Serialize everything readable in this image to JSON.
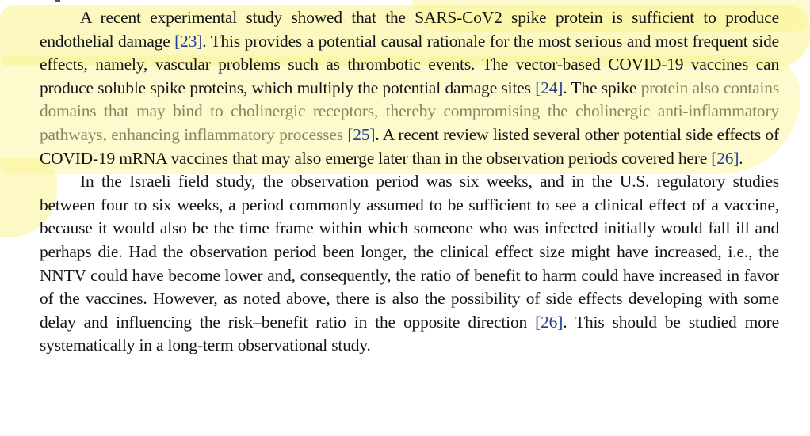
{
  "paragraphs": [
    {
      "segments": [
        {
          "t": "A recent experimental study showed that the SARS-CoV2 spike protein is sufficient to produce endothelial damage ",
          "c": ""
        },
        {
          "t": "[23]",
          "c": "ref"
        },
        {
          "t": ". This provides a potential causal rationale for the most serious and most frequent side effects, namely, vascular problems such as thrombotic events. The vector-based COVID-19 vaccines can produce soluble spike proteins, which multiply the potential damage sites ",
          "c": ""
        },
        {
          "t": "[24]",
          "c": "ref"
        },
        {
          "t": ". The spike ",
          "c": ""
        },
        {
          "t": "protein also contains domains that may bind to cholinergic receptors, thereby compromising the cholinergic anti-inflammatory pathways, enhancing inflammatory processes",
          "c": "fade"
        },
        {
          "t": " ",
          "c": ""
        },
        {
          "t": "[25]",
          "c": "ref"
        },
        {
          "t": ". A recent review listed several other potential side effects of COVID-19 mRNA vaccines that may also emerge later than in the observation periods covered here ",
          "c": ""
        },
        {
          "t": "[26]",
          "c": "ref"
        },
        {
          "t": ".",
          "c": ""
        }
      ]
    },
    {
      "segments": [
        {
          "t": "In the Israeli field study, the observation period was six weeks, and in the U.S. regulatory studies between four to six weeks, a period commonly assumed to be sufficient to see a clinical effect of a vaccine, because it would also be the time frame within which someone who was infected initially would fall ill and perhaps die. Had the observation period been longer, the clinical effect size might have increased, i.e., the NNTV could have become lower and, consequently, the ratio of benefit to harm could have increased in favor of the vaccines. However, as noted above, there is also the possibility of side effects developing with some delay and influencing the risk–benefit ratio in the opposite direction ",
          "c": ""
        },
        {
          "t": "[26]",
          "c": "ref"
        },
        {
          "t": ". This should be studied more systematically in a long-term observational study.",
          "c": ""
        }
      ]
    }
  ],
  "colors": {
    "highlight": "#fbf38a",
    "reference_link": "#1d3f8e",
    "text": "#141414"
  }
}
